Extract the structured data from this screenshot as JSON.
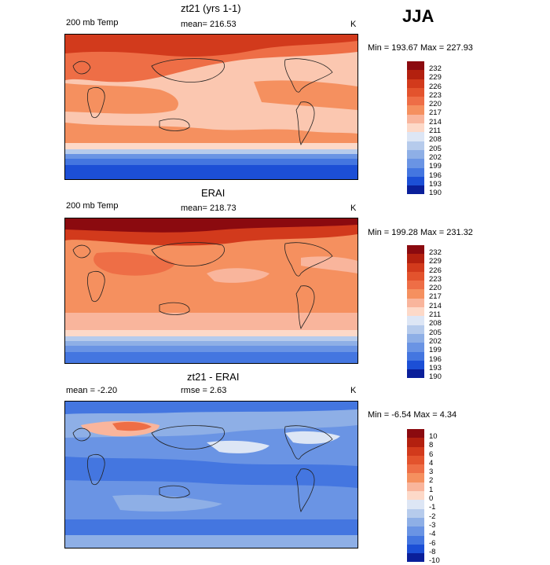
{
  "season": "JJA",
  "panels": [
    {
      "title": "zt21 (yrs 1-1)",
      "left": "200 mb Temp",
      "center": "mean= 216.53",
      "unit": "K",
      "range": "Min = 193.67 Max = 227.93"
    },
    {
      "title": "ERAI",
      "left": "200 mb Temp",
      "center": "mean= 218.73",
      "unit": "K",
      "range": "Min = 199.28 Max = 231.32"
    },
    {
      "title": "zt21 - ERAI",
      "left": "mean =   -2.20",
      "center": "rmse =    2.63",
      "unit": "K",
      "range": "Min =  -6.54 Max =   4.34"
    }
  ],
  "chart_data": [
    {
      "type": "heatmap",
      "title": "zt21 (yrs 1-1)",
      "variable": "200 mb Temp",
      "units": "K",
      "mean": 216.53,
      "min": 193.67,
      "max": 227.93,
      "colorbar_levels": [
        "232",
        "229",
        "226",
        "223",
        "220",
        "217",
        "214",
        "211",
        "208",
        "205",
        "202",
        "199",
        "196",
        "193",
        "190"
      ],
      "colorbar_colors": [
        "#8b0a0f",
        "#b3200f",
        "#d23a1c",
        "#e3532d",
        "#ee6e46",
        "#f5905f",
        "#f9b59c",
        "#fdd9c8",
        "#dde6f5",
        "#b6cbec",
        "#8eafe6",
        "#6a94e4",
        "#4476e0",
        "#1c4fd6",
        "#0a1f9a"
      ]
    },
    {
      "type": "heatmap",
      "title": "ERAI",
      "variable": "200 mb Temp",
      "units": "K",
      "mean": 218.73,
      "min": 199.28,
      "max": 231.32,
      "colorbar_levels": [
        "232",
        "229",
        "226",
        "223",
        "220",
        "217",
        "214",
        "211",
        "208",
        "205",
        "202",
        "199",
        "196",
        "193",
        "190"
      ],
      "colorbar_colors": [
        "#8b0a0f",
        "#b3200f",
        "#d23a1c",
        "#e3532d",
        "#ee6e46",
        "#f5905f",
        "#f9b59c",
        "#fdd9c8",
        "#dde6f5",
        "#b6cbec",
        "#8eafe6",
        "#6a94e4",
        "#4476e0",
        "#1c4fd6",
        "#0a1f9a"
      ]
    },
    {
      "type": "heatmap",
      "title": "zt21 - ERAI",
      "units": "K",
      "mean": -2.2,
      "rmse": 2.63,
      "min": -6.54,
      "max": 4.34,
      "colorbar_levels": [
        "10",
        "8",
        "6",
        "4",
        "3",
        "2",
        "1",
        "0",
        "-1",
        "-2",
        "-3",
        "-4",
        "-6",
        "-8",
        "-10"
      ],
      "colorbar_colors": [
        "#8b0a0f",
        "#b3200f",
        "#d23a1c",
        "#e3532d",
        "#ee6e46",
        "#f5905f",
        "#f9b59c",
        "#fdd9c8",
        "#dde6f5",
        "#b6cbec",
        "#8eafe6",
        "#6a94e4",
        "#4476e0",
        "#1c4fd6",
        "#0a1f9a"
      ]
    }
  ]
}
